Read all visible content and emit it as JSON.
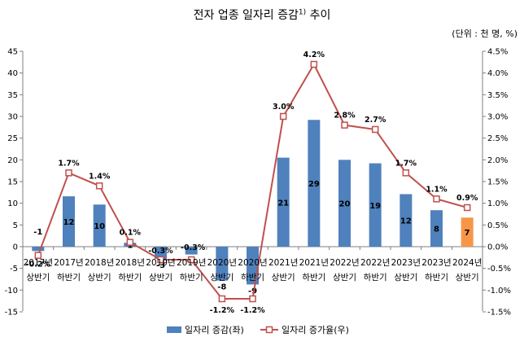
{
  "title": "전자 업종 일자리 증감",
  "title_sup": "1)",
  "title_suffix": " 추이",
  "unit": "(단위 : 천 명, %)",
  "colors": {
    "bar": "#4f81bd",
    "bar_highlight": "#f79646",
    "line": "#c0504d",
    "highlight_label": "#ff0000"
  },
  "chart_data": {
    "type": "bar+line",
    "categories": [
      [
        "2017년",
        "상반기"
      ],
      [
        "2017년",
        "하반기"
      ],
      [
        "2018년",
        "상반기"
      ],
      [
        "2018년",
        "하반기"
      ],
      [
        "2019년",
        "상반기"
      ],
      [
        "2019년",
        "하반기"
      ],
      [
        "2020년",
        "상반기"
      ],
      [
        "2020년",
        "하반기"
      ],
      [
        "2021년",
        "상반기"
      ],
      [
        "2021년",
        "하반기"
      ],
      [
        "2022년",
        "상반기"
      ],
      [
        "2022년",
        "하반기"
      ],
      [
        "2023년",
        "상반기"
      ],
      [
        "2023년",
        "하반기"
      ],
      [
        "2024년",
        "상반기"
      ]
    ],
    "bars": {
      "name": "일자리 증감(좌)",
      "values": [
        -1,
        12,
        10,
        1,
        -3,
        -2,
        -8,
        -9,
        21,
        29,
        20,
        19,
        12,
        8,
        7
      ],
      "heights": [
        -1.0,
        11.6,
        9.7,
        0.9,
        -2.8,
        -1.8,
        -7.8,
        -8.7,
        20.5,
        29.2,
        20.0,
        19.2,
        12.1,
        8.4,
        6.7
      ],
      "labels": [
        "-1",
        "12",
        "10",
        "1",
        "-3",
        "-2",
        "-8",
        "-9",
        "21",
        "29",
        "20",
        "19",
        "12",
        "8",
        "7"
      ],
      "highlight_index": 14
    },
    "line": {
      "name": "일자리 증가율(우)",
      "values": [
        -0.2,
        1.7,
        1.4,
        0.1,
        -0.3,
        -0.3,
        -1.2,
        -1.2,
        3.0,
        4.2,
        2.8,
        2.7,
        1.7,
        1.1,
        0.9
      ],
      "labels": [
        "-0.2%",
        "1.7%",
        "1.4%",
        "0.1%",
        "-0.3%",
        "-0.3%",
        "-1.2%",
        "-1.2%",
        "3.0%",
        "4.2%",
        "2.8%",
        "2.7%",
        "1.7%",
        "1.1%",
        "0.9%"
      ]
    },
    "y_left": {
      "min": -15,
      "max": 45,
      "step": 5
    },
    "y_right": {
      "min": -1.5,
      "max": 4.5,
      "step": 0.5,
      "suffix": "%"
    },
    "legend_position": "bottom"
  }
}
